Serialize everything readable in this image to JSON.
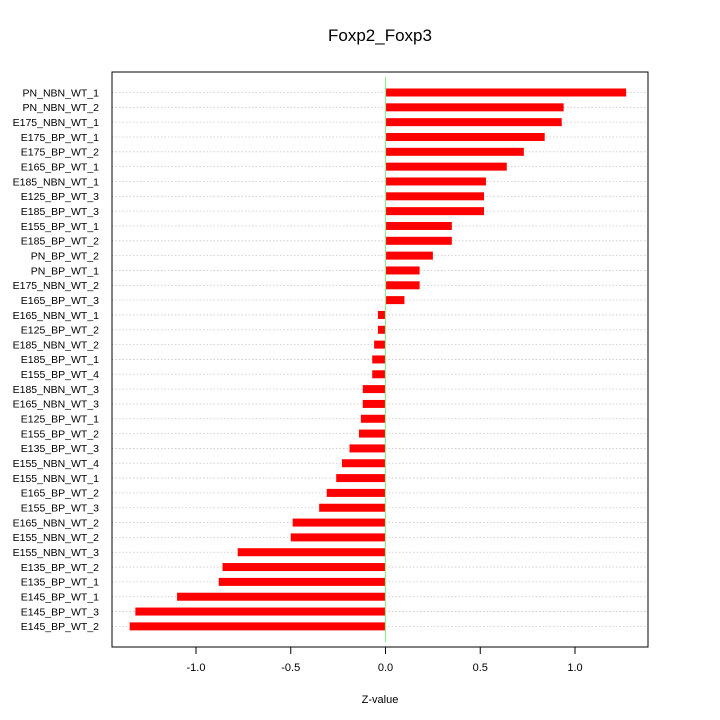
{
  "chart_data": {
    "type": "bar",
    "orientation": "horizontal",
    "title": "Foxp2_Foxp3",
    "xlabel": "Z-value",
    "ylabel": "",
    "xlim": [
      -1.4,
      1.38
    ],
    "xticks": [
      -1.0,
      -0.5,
      0.0,
      0.5,
      1.0
    ],
    "xtick_labels": [
      "-1.0",
      "-0.5",
      "0.0",
      "0.5",
      "1.0"
    ],
    "grid": true,
    "bar_color": "#ff0000",
    "zero_line_color": "#90ee90",
    "categories": [
      "PN_NBN_WT_1",
      "PN_NBN_WT_2",
      "E175_NBN_WT_1",
      "E175_BP_WT_1",
      "E175_BP_WT_2",
      "E165_BP_WT_1",
      "E185_NBN_WT_1",
      "E125_BP_WT_3",
      "E185_BP_WT_3",
      "E155_BP_WT_1",
      "E185_BP_WT_2",
      "PN_BP_WT_2",
      "PN_BP_WT_1",
      "E175_NBN_WT_2",
      "E165_BP_WT_3",
      "E165_NBN_WT_1",
      "E125_BP_WT_2",
      "E185_NBN_WT_2",
      "E185_BP_WT_1",
      "E155_BP_WT_4",
      "E185_NBN_WT_3",
      "E165_NBN_WT_3",
      "E125_BP_WT_1",
      "E155_BP_WT_2",
      "E135_BP_WT_3",
      "E155_NBN_WT_4",
      "E155_NBN_WT_1",
      "E165_BP_WT_2",
      "E155_BP_WT_3",
      "E165_NBN_WT_2",
      "E155_NBN_WT_2",
      "E155_NBN_WT_3",
      "E135_BP_WT_2",
      "E135_BP_WT_1",
      "E145_BP_WT_1",
      "E145_BP_WT_3",
      "E145_BP_WT_2"
    ],
    "values": [
      1.27,
      0.94,
      0.93,
      0.84,
      0.73,
      0.64,
      0.53,
      0.52,
      0.52,
      0.35,
      0.35,
      0.25,
      0.18,
      0.18,
      0.1,
      -0.04,
      -0.04,
      -0.06,
      -0.07,
      -0.07,
      -0.12,
      -0.12,
      -0.13,
      -0.14,
      -0.19,
      -0.23,
      -0.26,
      -0.31,
      -0.35,
      -0.49,
      -0.5,
      -0.78,
      -0.86,
      -0.88,
      -1.1,
      -1.32,
      -1.35
    ]
  }
}
